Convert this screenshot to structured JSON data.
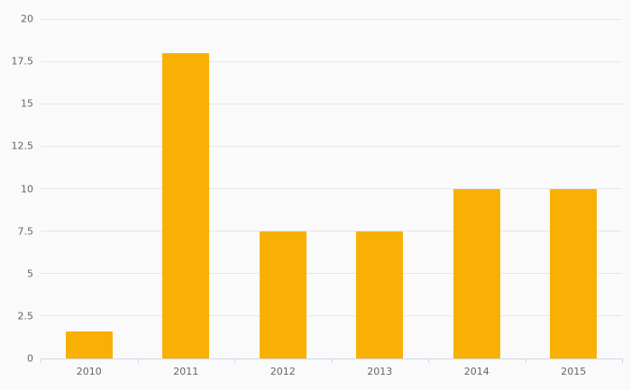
{
  "chart_data": {
    "type": "bar",
    "title": "",
    "xlabel": "",
    "ylabel": "",
    "categories": [
      "2010",
      "2011",
      "2012",
      "2013",
      "2014",
      "2015"
    ],
    "values": [
      1.6,
      18,
      7.5,
      7.5,
      10,
      10
    ],
    "ylim": [
      0,
      20
    ],
    "ytick_interval": 2.5,
    "yticks": [
      0,
      2.5,
      5,
      7.5,
      10,
      12.5,
      15,
      17.5,
      20
    ],
    "ytick_labels": [
      "0",
      "2.5",
      "5",
      "7.5",
      "10",
      "12.5",
      "15",
      "17.5",
      "20"
    ],
    "grid": true,
    "legend_position": "none",
    "colors": {
      "bar": "#f9b005",
      "gridline": "#e6e6e6",
      "axis_line": "#ccd6eb",
      "tick": "#ccd6eb",
      "label": "#666666",
      "background": "#fafafa"
    }
  }
}
